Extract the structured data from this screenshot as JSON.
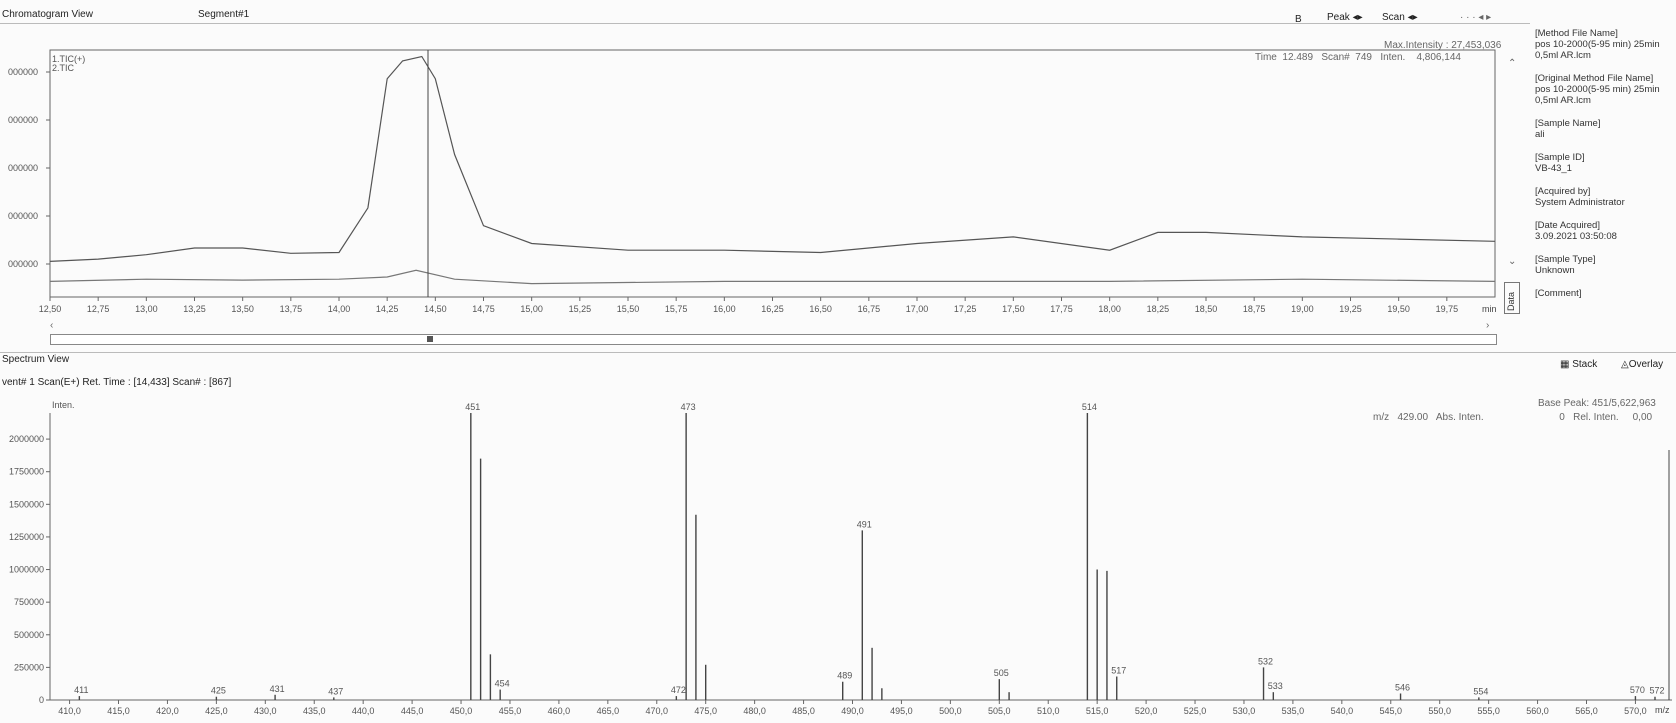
{
  "chromatogram": {
    "view_title": "Chromatogram View",
    "segment": "Segment#1",
    "toolbar": {
      "b": "B",
      "peak": "Peak",
      "scan": "Scan"
    },
    "max_intensity": "Max.Intensity : 27,453,036",
    "readout": {
      "time_label": "Time",
      "time": "12.489",
      "scan_label": "Scan#",
      "scan": "749",
      "inten_label": "Inten.",
      "inten": "4,806,144"
    },
    "trace_label": "1.TIC(+)",
    "trace_label2": "2.TIC",
    "y_ticks": [
      "000000",
      "000000",
      "000000",
      "000000",
      "000000"
    ],
    "x_ticks": [
      "12,50",
      "12,75",
      "13,00",
      "13,25",
      "13,50",
      "13,75",
      "14,00",
      "14,25",
      "14,50",
      "14,75",
      "15,00",
      "15,25",
      "15,50",
      "15,75",
      "16,00",
      "16,25",
      "16,50",
      "16,75",
      "17,00",
      "17,25",
      "17,50",
      "17,75",
      "18,00",
      "18,25",
      "18,50",
      "18,75",
      "19,00",
      "19,25",
      "19,50",
      "19,75"
    ],
    "x_unit": "min"
  },
  "side_panel": [
    {
      "label": "[Method File Name]",
      "value": "pos 10-2000(5-95 min) 25min 0,5ml AR.lcm"
    },
    {
      "label": "[Original Method File Name]",
      "value": "pos 10-2000(5-95 min) 25min 0,5ml AR.lcm"
    },
    {
      "label": "[Sample Name]",
      "value": "ali"
    },
    {
      "label": "[Sample ID]",
      "value": "VB-43_1"
    },
    {
      "label": "[Acquired by]",
      "value": "System Administrator"
    },
    {
      "label": "[Date Acquired]",
      "value": "3.09.2021 03:50:08"
    },
    {
      "label": "[Sample Type]",
      "value": "Unknown"
    },
    {
      "label": "[Comment]",
      "value": ""
    }
  ],
  "side_tab": "Data",
  "spectrum": {
    "view_title": "Spectrum View",
    "info": "vent# 1 Scan(E+)  Ret. Time : [14,433]  Scan# : [867]",
    "stack_button": "Stack",
    "overlay_button": "Overlay",
    "y_axis_label": "Inten.",
    "base_peak": "Base Peak: 451/5,622,963",
    "readout": {
      "mz_label": "m/z",
      "mz": "429.00",
      "abs_label": "Abs. Inten.",
      "abs": "0",
      "rel_label": "Rel. Inten.",
      "rel": "0,00"
    },
    "x_unit": "m/z"
  },
  "chart_data": [
    {
      "type": "line",
      "title": "",
      "xlabel": "min",
      "ylabel": "",
      "xlim": [
        12.5,
        20.0
      ],
      "series": [
        {
          "name": "1.TIC(+)",
          "x": [
            12.5,
            12.75,
            13.0,
            13.25,
            13.5,
            13.75,
            14.0,
            14.15,
            14.25,
            14.33,
            14.43,
            14.5,
            14.6,
            14.75,
            15.0,
            15.5,
            16.0,
            16.5,
            17.0,
            17.5,
            18.0,
            18.25,
            18.5,
            19.0,
            19.5,
            20.0
          ],
          "y": [
            0.8,
            0.85,
            0.95,
            1.1,
            1.1,
            0.98,
            1.0,
            2.0,
            4.9,
            5.3,
            5.4,
            4.9,
            3.2,
            1.6,
            1.2,
            1.05,
            1.05,
            1.0,
            1.2,
            1.35,
            1.05,
            1.45,
            1.45,
            1.35,
            1.3,
            1.25
          ]
        },
        {
          "name": "2.TIC",
          "x": [
            12.5,
            13.0,
            13.5,
            14.0,
            14.25,
            14.4,
            14.6,
            15.0,
            16.0,
            17.0,
            18.0,
            19.0,
            20.0
          ],
          "y": [
            0.35,
            0.4,
            0.38,
            0.4,
            0.45,
            0.6,
            0.4,
            0.3,
            0.35,
            0.35,
            0.35,
            0.4,
            0.35
          ]
        }
      ]
    },
    {
      "type": "bar",
      "title": "",
      "xlabel": "m/z",
      "ylabel": "Inten.",
      "xlim": [
        408,
        572
      ],
      "ylim": [
        0,
        2200000
      ],
      "y_ticks": [
        "2000000",
        "1750000",
        "1500000",
        "1250000",
        "1000000",
        "750000",
        "500000",
        "250000",
        "0"
      ],
      "x_ticks": [
        "410,0",
        "415,0",
        "420,0",
        "425,0",
        "430,0",
        "435,0",
        "440,0",
        "445,0",
        "450,0",
        "455,0",
        "460,0",
        "465,0",
        "470,0",
        "475,0",
        "480,0",
        "485,0",
        "490,0",
        "495,0",
        "500,0",
        "505,0",
        "510,0",
        "515,0",
        "520,0",
        "525,0",
        "530,0",
        "535,0",
        "540,0",
        "545,0",
        "550,0",
        "555,0",
        "560,0",
        "565,0",
        "570,0"
      ],
      "peaks": [
        {
          "mz": 411,
          "value": 30000,
          "label": "411"
        },
        {
          "mz": 425,
          "value": 25000,
          "label": "425"
        },
        {
          "mz": 431,
          "value": 40000,
          "label": "431"
        },
        {
          "mz": 437,
          "value": 20000,
          "label": "437"
        },
        {
          "mz": 451,
          "value": 2200000,
          "label": "451"
        },
        {
          "mz": 452,
          "value": 1850000,
          "label": ""
        },
        {
          "mz": 453,
          "value": 350000,
          "label": ""
        },
        {
          "mz": 454,
          "value": 80000,
          "label": "454"
        },
        {
          "mz": 472,
          "value": 30000,
          "label": "472"
        },
        {
          "mz": 473,
          "value": 2200000,
          "label": "473"
        },
        {
          "mz": 474,
          "value": 1420000,
          "label": ""
        },
        {
          "mz": 475,
          "value": 270000,
          "label": ""
        },
        {
          "mz": 489,
          "value": 140000,
          "label": "489"
        },
        {
          "mz": 491,
          "value": 1300000,
          "label": "491"
        },
        {
          "mz": 492,
          "value": 400000,
          "label": ""
        },
        {
          "mz": 493,
          "value": 90000,
          "label": ""
        },
        {
          "mz": 505,
          "value": 160000,
          "label": "505"
        },
        {
          "mz": 506,
          "value": 60000,
          "label": ""
        },
        {
          "mz": 514,
          "value": 2200000,
          "label": "514"
        },
        {
          "mz": 515,
          "value": 1000000,
          "label": ""
        },
        {
          "mz": 516,
          "value": 990000,
          "label": ""
        },
        {
          "mz": 517,
          "value": 180000,
          "label": "517"
        },
        {
          "mz": 532,
          "value": 250000,
          "label": "532"
        },
        {
          "mz": 533,
          "value": 60000,
          "label": "533"
        },
        {
          "mz": 546,
          "value": 50000,
          "label": "546"
        },
        {
          "mz": 554,
          "value": 20000,
          "label": "554"
        },
        {
          "mz": 570,
          "value": 30000,
          "label": "570"
        },
        {
          "mz": 572,
          "value": 25000,
          "label": "572"
        }
      ]
    }
  ]
}
